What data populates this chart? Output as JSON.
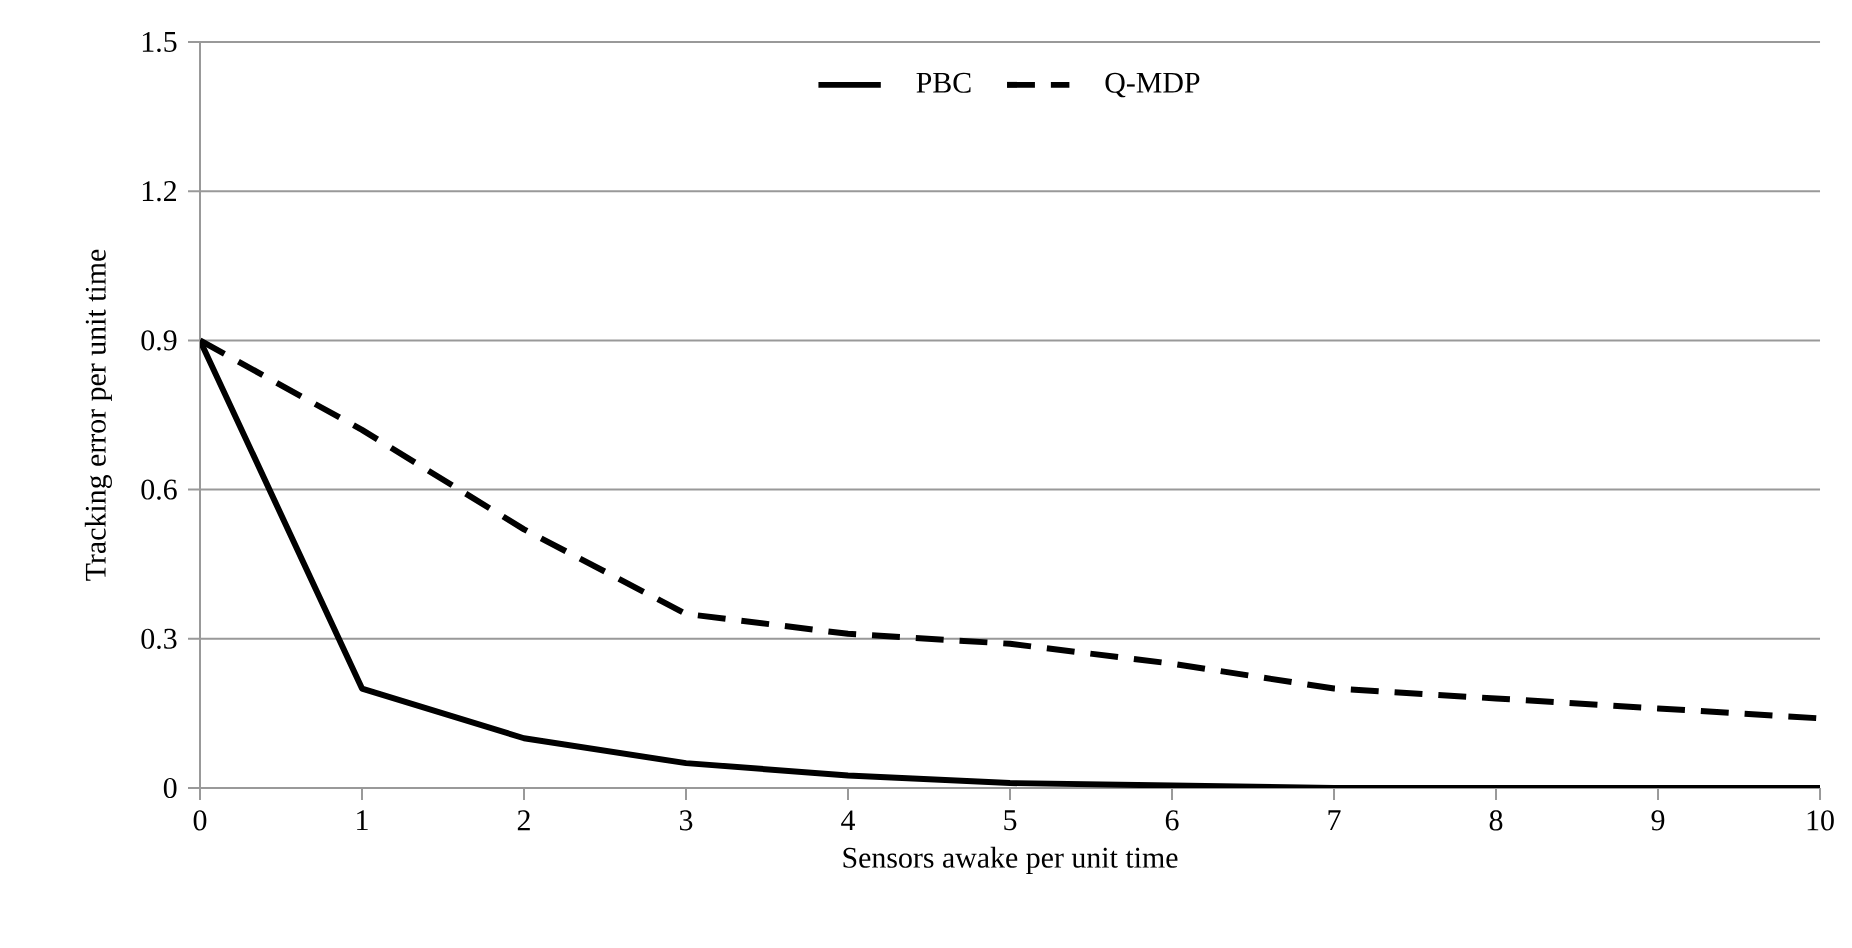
{
  "chart_data": {
    "type": "line",
    "xlabel": "Sensors awake per unit time",
    "ylabel": "Tracking error per unit time",
    "x": [
      0,
      1,
      2,
      3,
      4,
      5,
      6,
      7,
      8,
      9,
      10
    ],
    "series": [
      {
        "name": "PBC",
        "color": "#000000",
        "line_style": "solid",
        "values": [
          0.9,
          0.2,
          0.1,
          0.05,
          0.025,
          0.01,
          0.005,
          0,
          0,
          0,
          0
        ]
      },
      {
        "name": "Q-MDP",
        "color": "#000000",
        "line_style": "dashed",
        "values": [
          0.9,
          0.72,
          0.52,
          0.35,
          0.31,
          0.29,
          0.25,
          0.2,
          0.18,
          0.16,
          0.14
        ]
      }
    ],
    "xlim": [
      0,
      10
    ],
    "xticks": [
      0,
      1,
      2,
      3,
      4,
      5,
      6,
      7,
      8,
      9,
      10
    ],
    "ylim": [
      0,
      1.5
    ],
    "yticks": [
      {
        "value": 0,
        "label": "0"
      },
      {
        "value": 0.3,
        "label": "0.3"
      },
      {
        "value": 0.6,
        "label": "0.6"
      },
      {
        "value": 0.9,
        "label": "0.9"
      },
      {
        "value": 1.2,
        "label": "1.2"
      },
      {
        "value": 1.5,
        "label": "1.5"
      }
    ],
    "grid": "y",
    "legend": "top",
    "marker": "none"
  }
}
